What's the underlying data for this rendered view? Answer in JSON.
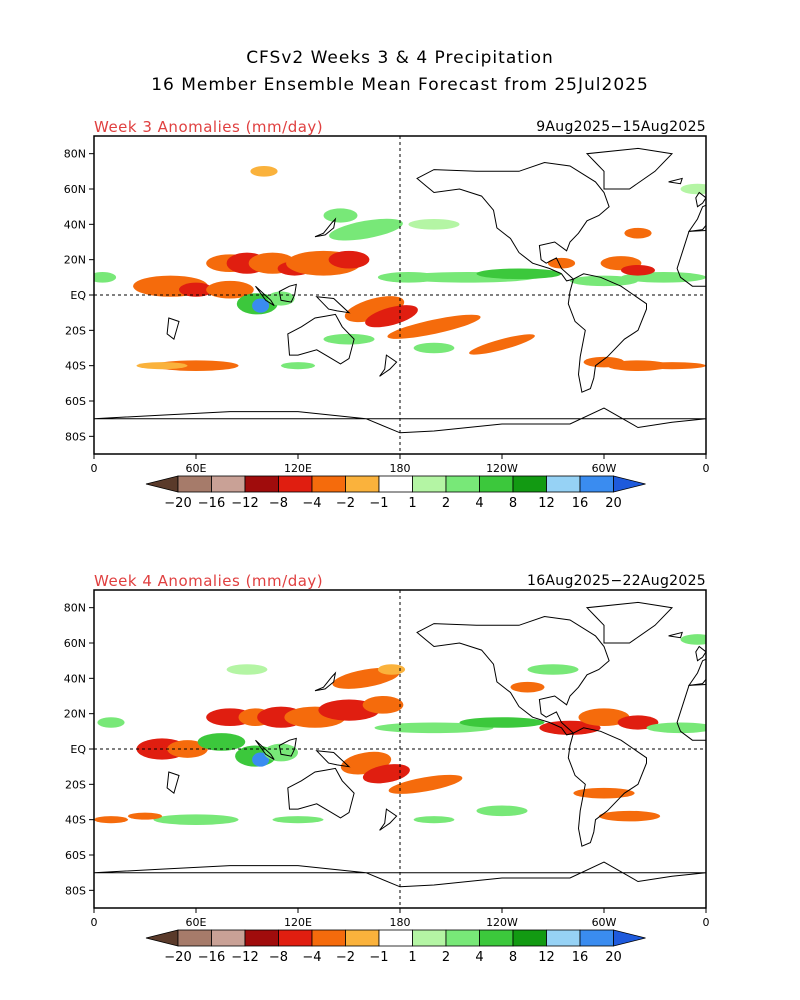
{
  "title": {
    "line1": "CFSv2 Weeks 3 & 4 Precipitation",
    "line2": "16 Member Ensemble Mean Forecast from 25Jul2025"
  },
  "panels": [
    {
      "label": "Week 3 Anomalies (mm/day)",
      "date_range": "9Aug2025−15Aug2025",
      "lat_ticks": [
        "80N",
        "60N",
        "40N",
        "20N",
        "EQ",
        "20S",
        "40S",
        "60S",
        "80S"
      ],
      "lon_ticks": [
        "0",
        "60E",
        "120E",
        "180",
        "120W",
        "60W",
        "0"
      ]
    },
    {
      "label": "Week 4 Anomalies (mm/day)",
      "date_range": "16Aug2025−22Aug2025",
      "lat_ticks": [
        "80N",
        "60N",
        "40N",
        "20N",
        "EQ",
        "20S",
        "40S",
        "60S",
        "80S"
      ],
      "lon_ticks": [
        "0",
        "60E",
        "120E",
        "180",
        "120W",
        "60W",
        "0"
      ]
    }
  ],
  "colorbar": {
    "labels": [
      "−20",
      "−16",
      "−12",
      "−8",
      "−4",
      "−2",
      "−1",
      "1",
      "2",
      "4",
      "8",
      "12",
      "16",
      "20"
    ],
    "colors": [
      "#5a3a2a",
      "#a67b6a",
      "#c9a196",
      "#a00c0c",
      "#e01e10",
      "#f56b0c",
      "#fab23c",
      "#ffffff",
      "#b4f5a4",
      "#78e878",
      "#3cc83c",
      "#129a12",
      "#96d2f5",
      "#3a8cf0",
      "#1e5adc"
    ]
  },
  "shading_colors": {
    "dry_strong": "#a00c0c",
    "dry_mid": "#e01e10",
    "dry": "#f56b0c",
    "dry_light": "#fab23c",
    "wet_light": "#b4f5a4",
    "wet": "#78e878",
    "wet_mid": "#3cc83c",
    "wet_strong": "#129a12",
    "wet_blue": "#3a8cf0"
  }
}
